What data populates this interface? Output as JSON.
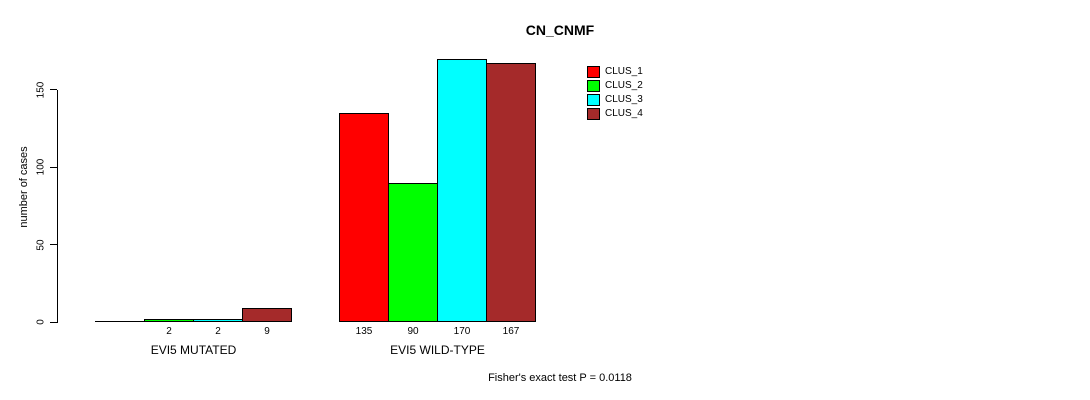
{
  "title": "CN_CNMF",
  "y_axis": {
    "label": "number of cases",
    "ticks": [
      "0",
      "50",
      "100",
      "150"
    ]
  },
  "footer": "Fisher's exact test P = 0.0118",
  "legend": {
    "items": [
      {
        "label": "CLUS_1",
        "color": "#ff0000"
      },
      {
        "label": "CLUS_2",
        "color": "#00ff00"
      },
      {
        "label": "CLUS_3",
        "color": "#00ffff"
      },
      {
        "label": "CLUS_4",
        "color": "#a52a2a"
      }
    ]
  },
  "chart_data": {
    "type": "bar",
    "title": "CN_CNMF",
    "categories": [
      "EVI5 MUTATED",
      "EVI5 WILD-TYPE"
    ],
    "series": [
      {
        "name": "CLUS_1",
        "color": "#ff0000",
        "values": [
          0,
          135
        ]
      },
      {
        "name": "CLUS_2",
        "color": "#00ff00",
        "values": [
          2,
          90
        ]
      },
      {
        "name": "CLUS_3",
        "color": "#00ffff",
        "values": [
          2,
          170
        ]
      },
      {
        "name": "CLUS_4",
        "color": "#a52a2a",
        "values": [
          9,
          167
        ]
      }
    ],
    "bar_value_labels": [
      [
        "",
        "2",
        "2",
        "9"
      ],
      [
        "135",
        "90",
        "170",
        "167"
      ]
    ],
    "xlabel": "",
    "ylabel": "number of cases",
    "yticks": [
      0,
      50,
      100,
      150
    ],
    "ylim": [
      0,
      172
    ],
    "grid": false,
    "bar_border_color": "#000000",
    "legend_position": "inside-top-right",
    "annotation": "Fisher's exact test P = 0.0118"
  }
}
